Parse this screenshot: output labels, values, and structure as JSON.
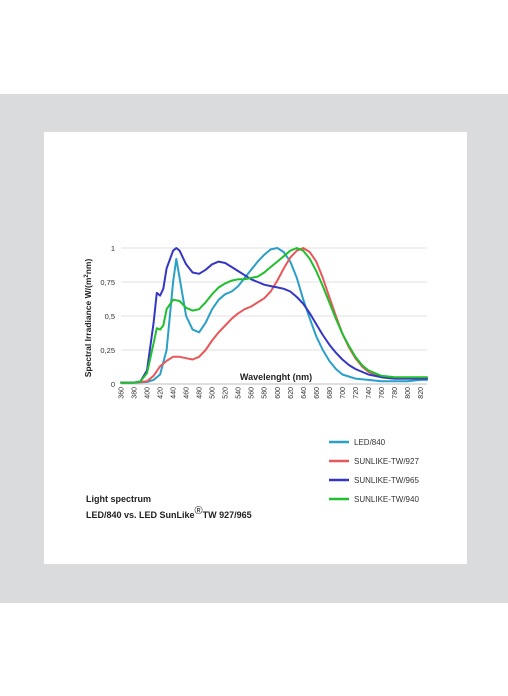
{
  "colors": {
    "page_bg": "#ffffff",
    "frame_bg": "#d9dbdd",
    "card_bg": "#ffffff",
    "grid": "#d9d9d9",
    "text": "#222222"
  },
  "caption": {
    "line1": "Light spectrum",
    "line2_prefix": "LED/840 vs. LED SunLike",
    "registered_mark": "®",
    "line2_suffix": "TW 927/965"
  },
  "chart_data": {
    "type": "line",
    "xlabel": "Wavelenght (nm)",
    "ylabel_main": "Spectral Irradiance  W/(m",
    "ylabel_sup": "2",
    "ylabel_end": "nm)",
    "xlim": [
      360,
      830
    ],
    "ylim": [
      0,
      1
    ],
    "x_ticks": [
      360,
      380,
      400,
      420,
      440,
      460,
      480,
      500,
      520,
      540,
      560,
      580,
      600,
      620,
      640,
      660,
      680,
      700,
      720,
      740,
      760,
      780,
      800,
      820
    ],
    "y_ticks": [
      0,
      0.25,
      0.5,
      0.75,
      1
    ],
    "y_tick_labels": [
      "0",
      "0,25",
      "0,5",
      "0,75",
      "1"
    ],
    "grid": true,
    "legend_position": "bottom-right",
    "series": [
      {
        "name": "LED/840",
        "color": "#2a9fc7",
        "points": [
          [
            360,
            0.01
          ],
          [
            380,
            0.01
          ],
          [
            400,
            0.015
          ],
          [
            410,
            0.03
          ],
          [
            420,
            0.07
          ],
          [
            430,
            0.25
          ],
          [
            440,
            0.75
          ],
          [
            445,
            0.92
          ],
          [
            450,
            0.78
          ],
          [
            460,
            0.5
          ],
          [
            470,
            0.4
          ],
          [
            480,
            0.38
          ],
          [
            490,
            0.45
          ],
          [
            500,
            0.55
          ],
          [
            510,
            0.62
          ],
          [
            520,
            0.66
          ],
          [
            530,
            0.68
          ],
          [
            540,
            0.72
          ],
          [
            550,
            0.78
          ],
          [
            560,
            0.84
          ],
          [
            570,
            0.9
          ],
          [
            580,
            0.95
          ],
          [
            590,
            0.99
          ],
          [
            600,
            1.0
          ],
          [
            610,
            0.97
          ],
          [
            620,
            0.9
          ],
          [
            630,
            0.78
          ],
          [
            640,
            0.62
          ],
          [
            650,
            0.48
          ],
          [
            660,
            0.35
          ],
          [
            670,
            0.25
          ],
          [
            680,
            0.17
          ],
          [
            690,
            0.11
          ],
          [
            700,
            0.07
          ],
          [
            720,
            0.04
          ],
          [
            740,
            0.03
          ],
          [
            760,
            0.02
          ],
          [
            780,
            0.02
          ],
          [
            800,
            0.02
          ],
          [
            820,
            0.03
          ],
          [
            830,
            0.03
          ]
        ]
      },
      {
        "name": "SUNLIKE-TW/927",
        "color": "#e8575a",
        "points": [
          [
            360,
            0.01
          ],
          [
            380,
            0.01
          ],
          [
            400,
            0.02
          ],
          [
            410,
            0.06
          ],
          [
            420,
            0.13
          ],
          [
            430,
            0.17
          ],
          [
            440,
            0.2
          ],
          [
            450,
            0.2
          ],
          [
            460,
            0.19
          ],
          [
            470,
            0.18
          ],
          [
            480,
            0.2
          ],
          [
            490,
            0.25
          ],
          [
            500,
            0.32
          ],
          [
            510,
            0.38
          ],
          [
            520,
            0.43
          ],
          [
            530,
            0.48
          ],
          [
            540,
            0.52
          ],
          [
            550,
            0.55
          ],
          [
            560,
            0.57
          ],
          [
            570,
            0.6
          ],
          [
            580,
            0.63
          ],
          [
            590,
            0.68
          ],
          [
            600,
            0.76
          ],
          [
            610,
            0.85
          ],
          [
            620,
            0.93
          ],
          [
            630,
            0.98
          ],
          [
            640,
            1.0
          ],
          [
            650,
            0.97
          ],
          [
            660,
            0.9
          ],
          [
            670,
            0.78
          ],
          [
            680,
            0.64
          ],
          [
            690,
            0.5
          ],
          [
            700,
            0.37
          ],
          [
            710,
            0.27
          ],
          [
            720,
            0.19
          ],
          [
            730,
            0.13
          ],
          [
            740,
            0.09
          ],
          [
            760,
            0.05
          ],
          [
            780,
            0.04
          ],
          [
            800,
            0.04
          ],
          [
            820,
            0.04
          ],
          [
            830,
            0.04
          ]
        ]
      },
      {
        "name": "SUNLIKE-TW/965",
        "color": "#3436c4",
        "points": [
          [
            360,
            0.01
          ],
          [
            380,
            0.01
          ],
          [
            390,
            0.02
          ],
          [
            400,
            0.1
          ],
          [
            410,
            0.45
          ],
          [
            415,
            0.67
          ],
          [
            420,
            0.65
          ],
          [
            425,
            0.7
          ],
          [
            430,
            0.85
          ],
          [
            440,
            0.98
          ],
          [
            445,
            1.0
          ],
          [
            450,
            0.98
          ],
          [
            460,
            0.88
          ],
          [
            470,
            0.82
          ],
          [
            480,
            0.81
          ],
          [
            490,
            0.84
          ],
          [
            500,
            0.88
          ],
          [
            510,
            0.9
          ],
          [
            520,
            0.89
          ],
          [
            530,
            0.86
          ],
          [
            540,
            0.83
          ],
          [
            550,
            0.8
          ],
          [
            560,
            0.77
          ],
          [
            570,
            0.75
          ],
          [
            580,
            0.73
          ],
          [
            590,
            0.72
          ],
          [
            600,
            0.71
          ],
          [
            610,
            0.7
          ],
          [
            620,
            0.68
          ],
          [
            630,
            0.64
          ],
          [
            640,
            0.59
          ],
          [
            650,
            0.52
          ],
          [
            660,
            0.44
          ],
          [
            670,
            0.36
          ],
          [
            680,
            0.29
          ],
          [
            690,
            0.23
          ],
          [
            700,
            0.18
          ],
          [
            710,
            0.14
          ],
          [
            720,
            0.11
          ],
          [
            740,
            0.07
          ],
          [
            760,
            0.05
          ],
          [
            780,
            0.04
          ],
          [
            800,
            0.04
          ],
          [
            820,
            0.04
          ],
          [
            830,
            0.04
          ]
        ]
      },
      {
        "name": "SUNLIKE-TW/940",
        "color": "#1fbf2e",
        "points": [
          [
            360,
            0.01
          ],
          [
            380,
            0.01
          ],
          [
            390,
            0.02
          ],
          [
            400,
            0.08
          ],
          [
            410,
            0.3
          ],
          [
            415,
            0.41
          ],
          [
            420,
            0.4
          ],
          [
            425,
            0.43
          ],
          [
            430,
            0.55
          ],
          [
            440,
            0.62
          ],
          [
            450,
            0.61
          ],
          [
            460,
            0.56
          ],
          [
            470,
            0.54
          ],
          [
            480,
            0.55
          ],
          [
            490,
            0.6
          ],
          [
            500,
            0.66
          ],
          [
            510,
            0.71
          ],
          [
            520,
            0.74
          ],
          [
            530,
            0.76
          ],
          [
            540,
            0.77
          ],
          [
            550,
            0.77
          ],
          [
            560,
            0.78
          ],
          [
            570,
            0.79
          ],
          [
            580,
            0.82
          ],
          [
            590,
            0.86
          ],
          [
            600,
            0.9
          ],
          [
            610,
            0.94
          ],
          [
            620,
            0.98
          ],
          [
            630,
            1.0
          ],
          [
            640,
            0.98
          ],
          [
            650,
            0.92
          ],
          [
            660,
            0.83
          ],
          [
            670,
            0.72
          ],
          [
            680,
            0.6
          ],
          [
            690,
            0.48
          ],
          [
            700,
            0.37
          ],
          [
            710,
            0.28
          ],
          [
            720,
            0.2
          ],
          [
            730,
            0.14
          ],
          [
            740,
            0.1
          ],
          [
            760,
            0.06
          ],
          [
            780,
            0.05
          ],
          [
            800,
            0.05
          ],
          [
            820,
            0.05
          ],
          [
            830,
            0.05
          ]
        ]
      }
    ]
  }
}
